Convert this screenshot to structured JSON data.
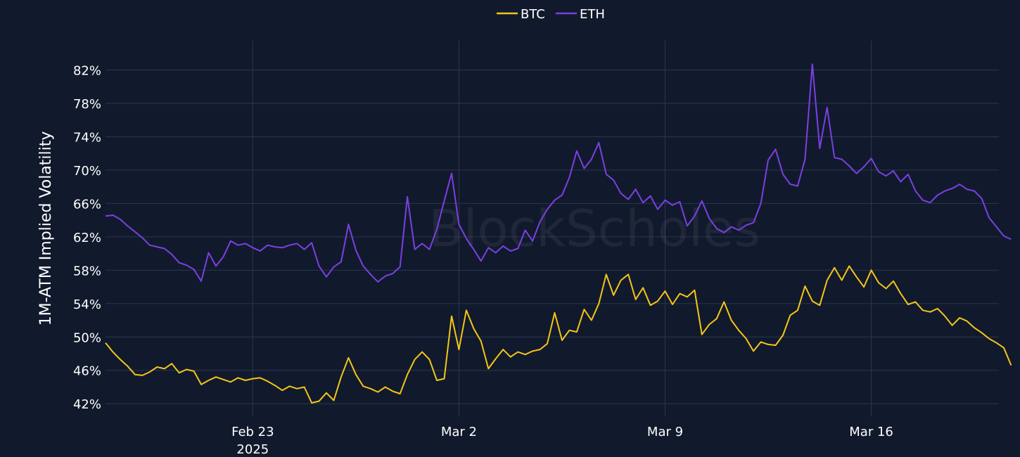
{
  "chart_data": {
    "type": "line",
    "ylabel": "1M-ATM Implied Volatility",
    "ylim": [
      40.5,
      85.5
    ],
    "y_ticks": [
      "42%",
      "46%",
      "50%",
      "54%",
      "58%",
      "62%",
      "66%",
      "70%",
      "74%",
      "78%",
      "82%"
    ],
    "y_tick_values": [
      42,
      46,
      50,
      54,
      58,
      62,
      66,
      70,
      74,
      78,
      82
    ],
    "xlim": [
      "2025-02-18",
      "2025-03-20T08:00"
    ],
    "x_ticks": [
      {
        "date": "2025-02-23",
        "label": "Feb 23",
        "sublabel": "2025"
      },
      {
        "date": "2025-03-02",
        "label": "Mar 2",
        "sublabel": ""
      },
      {
        "date": "2025-03-09",
        "label": "Mar 9",
        "sublabel": ""
      },
      {
        "date": "2025-03-16",
        "label": "Mar 16",
        "sublabel": ""
      }
    ],
    "grid": true,
    "legend_position": "top-center",
    "watermark": "BlockScholes",
    "series": [
      {
        "name": "BTC",
        "color": "#f5c518",
        "points": [
          [
            "2025-02-18T00:00",
            49.3
          ],
          [
            "2025-02-18T06:00",
            48.2
          ],
          [
            "2025-02-18T12:00",
            47.3
          ],
          [
            "2025-02-18T18:00",
            46.5
          ],
          [
            "2025-02-19T00:00",
            45.5
          ],
          [
            "2025-02-19T06:00",
            45.4
          ],
          [
            "2025-02-19T12:00",
            45.8
          ],
          [
            "2025-02-19T18:00",
            46.4
          ],
          [
            "2025-02-20T00:00",
            46.2
          ],
          [
            "2025-02-20T06:00",
            46.8
          ],
          [
            "2025-02-20T12:00",
            45.7
          ],
          [
            "2025-02-20T18:00",
            46.1
          ],
          [
            "2025-02-21T00:00",
            45.9
          ],
          [
            "2025-02-21T06:00",
            44.3
          ],
          [
            "2025-02-21T12:00",
            44.8
          ],
          [
            "2025-02-21T18:00",
            45.2
          ],
          [
            "2025-02-22T00:00",
            44.9
          ],
          [
            "2025-02-22T06:00",
            44.6
          ],
          [
            "2025-02-22T12:00",
            45.1
          ],
          [
            "2025-02-22T18:00",
            44.8
          ],
          [
            "2025-02-23T00:00",
            45.0
          ],
          [
            "2025-02-23T06:00",
            45.1
          ],
          [
            "2025-02-23T12:00",
            44.7
          ],
          [
            "2025-02-23T18:00",
            44.2
          ],
          [
            "2025-02-24T00:00",
            43.6
          ],
          [
            "2025-02-24T06:00",
            44.1
          ],
          [
            "2025-02-24T12:00",
            43.8
          ],
          [
            "2025-02-24T18:00",
            44.0
          ],
          [
            "2025-02-25T00:00",
            42.1
          ],
          [
            "2025-02-25T06:00",
            42.3
          ],
          [
            "2025-02-25T12:00",
            43.3
          ],
          [
            "2025-02-25T18:00",
            42.4
          ],
          [
            "2025-02-26T00:00",
            45.2
          ],
          [
            "2025-02-26T06:00",
            47.5
          ],
          [
            "2025-02-26T12:00",
            45.5
          ],
          [
            "2025-02-26T18:00",
            44.1
          ],
          [
            "2025-02-27T00:00",
            43.8
          ],
          [
            "2025-02-27T06:00",
            43.4
          ],
          [
            "2025-02-27T12:00",
            44.0
          ],
          [
            "2025-02-27T18:00",
            43.5
          ],
          [
            "2025-02-28T00:00",
            43.2
          ],
          [
            "2025-02-28T06:00",
            45.5
          ],
          [
            "2025-02-28T12:00",
            47.3
          ],
          [
            "2025-02-28T18:00",
            48.2
          ],
          [
            "2025-03-01T00:00",
            47.3
          ],
          [
            "2025-03-01T06:00",
            44.8
          ],
          [
            "2025-03-01T12:00",
            45.0
          ],
          [
            "2025-03-01T18:00",
            52.5
          ],
          [
            "2025-03-02T00:00",
            48.5
          ],
          [
            "2025-03-02T06:00",
            53.2
          ],
          [
            "2025-03-02T12:00",
            51.0
          ],
          [
            "2025-03-02T18:00",
            49.5
          ],
          [
            "2025-03-03T00:00",
            46.2
          ],
          [
            "2025-03-03T06:00",
            47.4
          ],
          [
            "2025-03-03T12:00",
            48.5
          ],
          [
            "2025-03-03T18:00",
            47.6
          ],
          [
            "2025-03-04T00:00",
            48.2
          ],
          [
            "2025-03-04T06:00",
            47.9
          ],
          [
            "2025-03-04T12:00",
            48.3
          ],
          [
            "2025-03-04T18:00",
            48.5
          ],
          [
            "2025-03-05T00:00",
            49.2
          ],
          [
            "2025-03-05T06:00",
            52.9
          ],
          [
            "2025-03-05T12:00",
            49.6
          ],
          [
            "2025-03-05T18:00",
            50.8
          ],
          [
            "2025-03-06T00:00",
            50.6
          ],
          [
            "2025-03-06T06:00",
            53.3
          ],
          [
            "2025-03-06T12:00",
            52.0
          ],
          [
            "2025-03-06T18:00",
            54.0
          ],
          [
            "2025-03-07T00:00",
            57.5
          ],
          [
            "2025-03-07T06:00",
            55.0
          ],
          [
            "2025-03-07T12:00",
            56.8
          ],
          [
            "2025-03-07T18:00",
            57.5
          ],
          [
            "2025-03-08T00:00",
            54.5
          ],
          [
            "2025-03-08T06:00",
            55.9
          ],
          [
            "2025-03-08T12:00",
            53.8
          ],
          [
            "2025-03-08T18:00",
            54.3
          ],
          [
            "2025-03-09T00:00",
            55.5
          ],
          [
            "2025-03-09T06:00",
            53.9
          ],
          [
            "2025-03-09T12:00",
            55.2
          ],
          [
            "2025-03-09T18:00",
            54.8
          ],
          [
            "2025-03-10T00:00",
            55.6
          ],
          [
            "2025-03-10T06:00",
            50.3
          ],
          [
            "2025-03-10T12:00",
            51.5
          ],
          [
            "2025-03-10T18:00",
            52.2
          ],
          [
            "2025-03-11T00:00",
            54.2
          ],
          [
            "2025-03-11T06:00",
            52.0
          ],
          [
            "2025-03-11T12:00",
            50.8
          ],
          [
            "2025-03-11T18:00",
            49.8
          ],
          [
            "2025-03-12T00:00",
            48.3
          ],
          [
            "2025-03-12T06:00",
            49.4
          ],
          [
            "2025-03-12T12:00",
            49.1
          ],
          [
            "2025-03-12T18:00",
            49.0
          ],
          [
            "2025-03-13T00:00",
            50.2
          ],
          [
            "2025-03-13T06:00",
            52.6
          ],
          [
            "2025-03-13T12:00",
            53.2
          ],
          [
            "2025-03-13T18:00",
            56.1
          ],
          [
            "2025-03-14T00:00",
            54.3
          ],
          [
            "2025-03-14T06:00",
            53.8
          ],
          [
            "2025-03-14T12:00",
            56.8
          ],
          [
            "2025-03-14T18:00",
            58.3
          ],
          [
            "2025-03-15T00:00",
            56.8
          ],
          [
            "2025-03-15T06:00",
            58.5
          ],
          [
            "2025-03-15T12:00",
            57.2
          ],
          [
            "2025-03-15T18:00",
            56.0
          ],
          [
            "2025-03-16T00:00",
            58.0
          ],
          [
            "2025-03-16T06:00",
            56.5
          ],
          [
            "2025-03-16T12:00",
            55.8
          ],
          [
            "2025-03-16T18:00",
            56.7
          ],
          [
            "2025-03-17T00:00",
            55.2
          ],
          [
            "2025-03-17T06:00",
            53.9
          ],
          [
            "2025-03-17T12:00",
            54.2
          ],
          [
            "2025-03-17T18:00",
            53.2
          ],
          [
            "2025-03-18T00:00",
            53.0
          ],
          [
            "2025-03-18T06:00",
            53.4
          ],
          [
            "2025-03-18T12:00",
            52.5
          ],
          [
            "2025-03-18T18:00",
            51.4
          ],
          [
            "2025-03-19T00:00",
            52.3
          ],
          [
            "2025-03-19T06:00",
            51.9
          ],
          [
            "2025-03-19T12:00",
            51.1
          ],
          [
            "2025-03-19T18:00",
            50.5
          ],
          [
            "2025-03-20T00:00",
            49.8
          ],
          [
            "2025-03-20T06:00",
            49.3
          ],
          [
            "2025-03-20T12:00",
            48.7
          ],
          [
            "2025-03-20T18:00",
            46.6
          ]
        ]
      },
      {
        "name": "ETH",
        "color": "#7b3fe4",
        "points": [
          [
            "2025-02-18T00:00",
            64.5
          ],
          [
            "2025-02-18T06:00",
            64.6
          ],
          [
            "2025-02-18T12:00",
            64.1
          ],
          [
            "2025-02-18T18:00",
            63.3
          ],
          [
            "2025-02-19T00:00",
            62.6
          ],
          [
            "2025-02-19T06:00",
            61.9
          ],
          [
            "2025-02-19T12:00",
            61.0
          ],
          [
            "2025-02-19T18:00",
            60.8
          ],
          [
            "2025-02-20T00:00",
            60.6
          ],
          [
            "2025-02-20T06:00",
            59.9
          ],
          [
            "2025-02-20T12:00",
            58.9
          ],
          [
            "2025-02-20T18:00",
            58.6
          ],
          [
            "2025-02-21T00:00",
            58.1
          ],
          [
            "2025-02-21T06:00",
            56.7
          ],
          [
            "2025-02-21T12:00",
            60.1
          ],
          [
            "2025-02-21T18:00",
            58.5
          ],
          [
            "2025-02-22T00:00",
            59.6
          ],
          [
            "2025-02-22T06:00",
            61.5
          ],
          [
            "2025-02-22T12:00",
            61.0
          ],
          [
            "2025-02-22T18:00",
            61.2
          ],
          [
            "2025-02-23T00:00",
            60.7
          ],
          [
            "2025-02-23T06:00",
            60.3
          ],
          [
            "2025-02-23T12:00",
            61.0
          ],
          [
            "2025-02-23T18:00",
            60.8
          ],
          [
            "2025-02-24T00:00",
            60.7
          ],
          [
            "2025-02-24T06:00",
            61.0
          ],
          [
            "2025-02-24T12:00",
            61.2
          ],
          [
            "2025-02-24T18:00",
            60.5
          ],
          [
            "2025-02-25T00:00",
            61.3
          ],
          [
            "2025-02-25T06:00",
            58.5
          ],
          [
            "2025-02-25T12:00",
            57.2
          ],
          [
            "2025-02-25T18:00",
            58.4
          ],
          [
            "2025-02-26T00:00",
            59.0
          ],
          [
            "2025-02-26T06:00",
            63.5
          ],
          [
            "2025-02-26T12:00",
            60.4
          ],
          [
            "2025-02-26T18:00",
            58.5
          ],
          [
            "2025-02-27T00:00",
            57.5
          ],
          [
            "2025-02-27T06:00",
            56.6
          ],
          [
            "2025-02-27T12:00",
            57.3
          ],
          [
            "2025-02-27T18:00",
            57.6
          ],
          [
            "2025-02-28T00:00",
            58.4
          ],
          [
            "2025-02-28T06:00",
            66.8
          ],
          [
            "2025-02-28T12:00",
            60.5
          ],
          [
            "2025-02-28T18:00",
            61.2
          ],
          [
            "2025-03-01T00:00",
            60.5
          ],
          [
            "2025-03-01T06:00",
            62.9
          ],
          [
            "2025-03-01T12:00",
            66.3
          ],
          [
            "2025-03-01T18:00",
            69.6
          ],
          [
            "2025-03-02T00:00",
            63.5
          ],
          [
            "2025-03-02T06:00",
            61.8
          ],
          [
            "2025-03-02T12:00",
            60.5
          ],
          [
            "2025-03-02T18:00",
            59.1
          ],
          [
            "2025-03-03T00:00",
            60.7
          ],
          [
            "2025-03-03T06:00",
            60.1
          ],
          [
            "2025-03-03T12:00",
            60.9
          ],
          [
            "2025-03-03T18:00",
            60.3
          ],
          [
            "2025-03-04T00:00",
            60.6
          ],
          [
            "2025-03-04T06:00",
            62.8
          ],
          [
            "2025-03-04T12:00",
            61.5
          ],
          [
            "2025-03-04T18:00",
            63.8
          ],
          [
            "2025-03-05T00:00",
            65.3
          ],
          [
            "2025-03-05T06:00",
            66.4
          ],
          [
            "2025-03-05T12:00",
            67.0
          ],
          [
            "2025-03-05T18:00",
            69.1
          ],
          [
            "2025-03-06T00:00",
            72.3
          ],
          [
            "2025-03-06T06:00",
            70.2
          ],
          [
            "2025-03-06T12:00",
            71.3
          ],
          [
            "2025-03-06T18:00",
            73.3
          ],
          [
            "2025-03-07T00:00",
            69.5
          ],
          [
            "2025-03-07T06:00",
            68.8
          ],
          [
            "2025-03-07T12:00",
            67.2
          ],
          [
            "2025-03-07T18:00",
            66.5
          ],
          [
            "2025-03-08T00:00",
            67.7
          ],
          [
            "2025-03-08T06:00",
            66.1
          ],
          [
            "2025-03-08T12:00",
            66.9
          ],
          [
            "2025-03-08T18:00",
            65.3
          ],
          [
            "2025-03-09T00:00",
            66.4
          ],
          [
            "2025-03-09T06:00",
            65.8
          ],
          [
            "2025-03-09T12:00",
            66.2
          ],
          [
            "2025-03-09T18:00",
            63.3
          ],
          [
            "2025-03-10T00:00",
            64.5
          ],
          [
            "2025-03-10T06:00",
            66.3
          ],
          [
            "2025-03-10T12:00",
            64.2
          ],
          [
            "2025-03-10T18:00",
            63.0
          ],
          [
            "2025-03-11T00:00",
            62.5
          ],
          [
            "2025-03-11T06:00",
            63.2
          ],
          [
            "2025-03-11T12:00",
            62.8
          ],
          [
            "2025-03-11T18:00",
            63.4
          ],
          [
            "2025-03-12T00:00",
            63.7
          ],
          [
            "2025-03-12T06:00",
            66.0
          ],
          [
            "2025-03-12T12:00",
            71.2
          ],
          [
            "2025-03-12T18:00",
            72.5
          ],
          [
            "2025-03-13T00:00",
            69.5
          ],
          [
            "2025-03-13T06:00",
            68.3
          ],
          [
            "2025-03-13T12:00",
            68.1
          ],
          [
            "2025-03-13T18:00",
            71.3
          ],
          [
            "2025-03-14T00:00",
            82.7
          ],
          [
            "2025-03-14T06:00",
            72.6
          ],
          [
            "2025-03-14T12:00",
            77.5
          ],
          [
            "2025-03-14T18:00",
            71.5
          ],
          [
            "2025-03-15T00:00",
            71.3
          ],
          [
            "2025-03-15T06:00",
            70.5
          ],
          [
            "2025-03-15T12:00",
            69.6
          ],
          [
            "2025-03-15T18:00",
            70.4
          ],
          [
            "2025-03-16T00:00",
            71.4
          ],
          [
            "2025-03-16T06:00",
            69.8
          ],
          [
            "2025-03-16T12:00",
            69.3
          ],
          [
            "2025-03-16T18:00",
            69.9
          ],
          [
            "2025-03-17T00:00",
            68.6
          ],
          [
            "2025-03-17T06:00",
            69.5
          ],
          [
            "2025-03-17T12:00",
            67.5
          ],
          [
            "2025-03-17T18:00",
            66.4
          ],
          [
            "2025-03-18T00:00",
            66.1
          ],
          [
            "2025-03-18T06:00",
            67.0
          ],
          [
            "2025-03-18T12:00",
            67.5
          ],
          [
            "2025-03-18T18:00",
            67.8
          ],
          [
            "2025-03-19T00:00",
            68.3
          ],
          [
            "2025-03-19T06:00",
            67.7
          ],
          [
            "2025-03-19T12:00",
            67.5
          ],
          [
            "2025-03-19T18:00",
            66.6
          ],
          [
            "2025-03-20T00:00",
            64.3
          ],
          [
            "2025-03-20T06:00",
            63.2
          ],
          [
            "2025-03-20T12:00",
            62.1
          ],
          [
            "2025-03-20T18:00",
            61.7
          ]
        ]
      }
    ]
  }
}
